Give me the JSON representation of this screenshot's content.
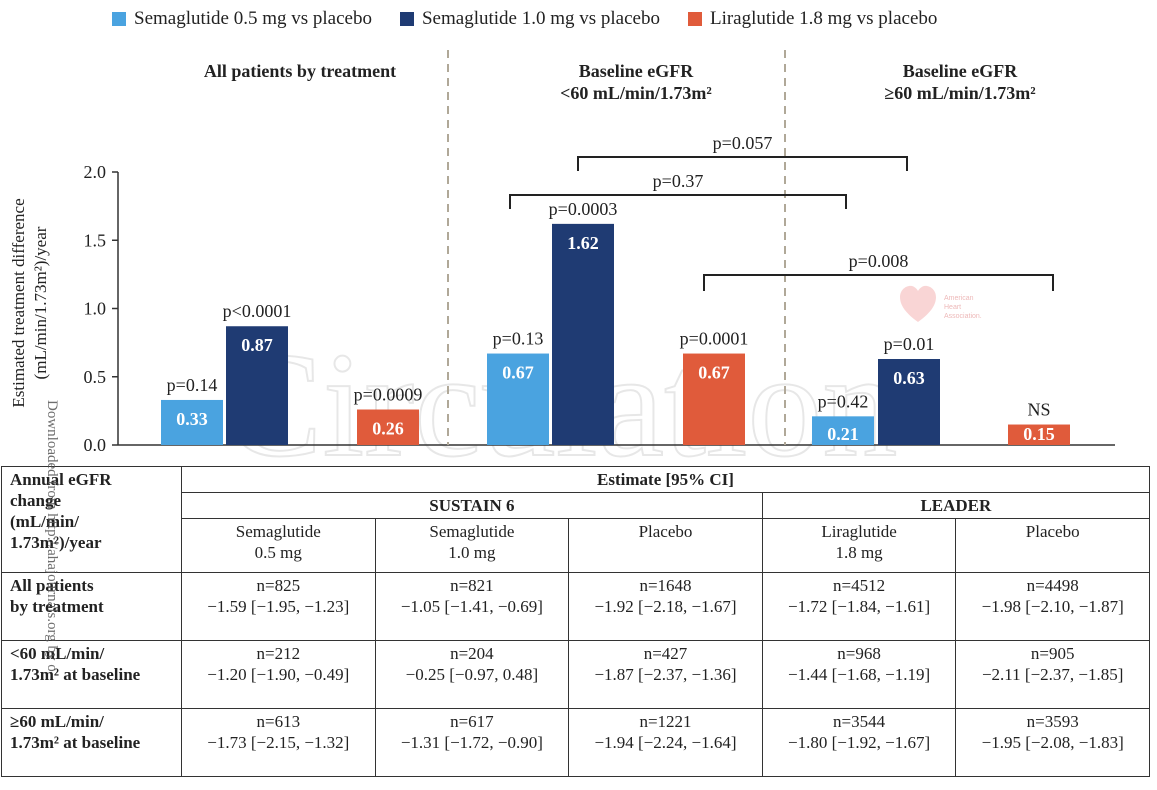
{
  "legend": [
    {
      "label": "Semaglutide 0.5 mg vs placebo",
      "color": "#4aa3e0"
    },
    {
      "label": "Semaglutide 1.0 mg vs placebo",
      "color": "#1f3b73"
    },
    {
      "label": "Liraglutide 1.8 mg vs placebo",
      "color": "#e05b3b"
    }
  ],
  "panels": [
    {
      "title_line1": "All patients by treatment",
      "title_line2": ""
    },
    {
      "title_line1": "Baseline eGFR",
      "title_line2": "<60 mL/min/1.73m²"
    },
    {
      "title_line1": "Baseline eGFR",
      "title_line2": "≥60 mL/min/1.73m²"
    }
  ],
  "chart_data": {
    "type": "bar",
    "ylabel_line1": "Estimated treatment difference",
    "ylabel_line2": "(mL/min/1.73m²)/year",
    "ylim": [
      0,
      2.0
    ],
    "yticks": [
      "0.0",
      "0.5",
      "1.0",
      "1.5",
      "2.0"
    ],
    "groups": [
      "All patients by treatment",
      "Baseline eGFR <60 mL/min/1.73m²",
      "Baseline eGFR ≥60 mL/min/1.73m²"
    ],
    "series": [
      {
        "name": "Semaglutide 0.5 mg vs placebo",
        "color": "#4aa3e0",
        "values": [
          0.33,
          0.67,
          0.21
        ],
        "pvalues": [
          "p=0.14",
          "p=0.13",
          "p=0.42"
        ]
      },
      {
        "name": "Semaglutide 1.0 mg vs placebo",
        "color": "#1f3b73",
        "values": [
          0.87,
          1.62,
          0.63
        ],
        "pvalues": [
          "p<0.0001",
          "p=0.0003",
          "p=0.01"
        ]
      },
      {
        "name": "Liraglutide 1.8 mg vs placebo",
        "color": "#e05b3b",
        "values": [
          0.26,
          0.67,
          0.15
        ],
        "pvalues": [
          "p=0.0009",
          "p=0.0001",
          "NS"
        ]
      }
    ],
    "brackets": [
      {
        "label": "p=0.057"
      },
      {
        "label": "p=0.37"
      },
      {
        "label": "p=0.008"
      }
    ]
  },
  "table": {
    "corner": [
      "Annual eGFR",
      "change",
      "(mL/min/",
      "1.73m²)/year"
    ],
    "estimate_header": "Estimate [95% CI]",
    "trial1": "SUSTAIN 6",
    "trial2": "LEADER",
    "columns": [
      [
        "Semaglutide",
        "0.5 mg"
      ],
      [
        "Semaglutide",
        "1.0 mg"
      ],
      [
        "Placebo",
        ""
      ],
      [
        "Liraglutide",
        "1.8 mg"
      ],
      [
        "Placebo",
        ""
      ]
    ],
    "rows": [
      {
        "label1": "All patients",
        "label2": "by treatment",
        "cells": [
          [
            "n=825",
            "−1.59 [−1.95, −1.23]"
          ],
          [
            "n=821",
            "−1.05 [−1.41, −0.69]"
          ],
          [
            "n=1648",
            "−1.92 [−2.18, −1.67]"
          ],
          [
            "n=4512",
            "−1.72 [−1.84, −1.61]"
          ],
          [
            "n=4498",
            "−1.98 [−2.10, −1.87]"
          ]
        ]
      },
      {
        "label1": "<60 mL/min/",
        "label2": "1.73m² at baseline",
        "cells": [
          [
            "n=212",
            "−1.20 [−1.90, −0.49]"
          ],
          [
            "n=204",
            "−0.25 [−0.97, 0.48]"
          ],
          [
            "n=427",
            "−1.87 [−2.37, −1.36]"
          ],
          [
            "n=968",
            "−1.44 [−1.68, −1.19]"
          ],
          [
            "n=905",
            "−2.11 [−2.37, −1.85]"
          ]
        ]
      },
      {
        "label1": "≥60 mL/min/",
        "label2": "1.73m² at baseline",
        "cells": [
          [
            "n=613",
            "−1.73 [−2.15, −1.32]"
          ],
          [
            "n=617",
            "−1.31 [−1.72, −0.90]"
          ],
          [
            "n=1221",
            "−1.94 [−2.24, −1.64]"
          ],
          [
            "n=3544",
            "−1.80 [−1.92, −1.67]"
          ],
          [
            "n=3593",
            "−1.95 [−2.08, −1.83]"
          ]
        ]
      }
    ]
  },
  "watermarks": {
    "side_text": "Downloaded from http://ahajournals.org by o",
    "journal_text": "Circulation",
    "logo_line1": "American",
    "logo_line2": "Heart",
    "logo_line3": "Association."
  }
}
